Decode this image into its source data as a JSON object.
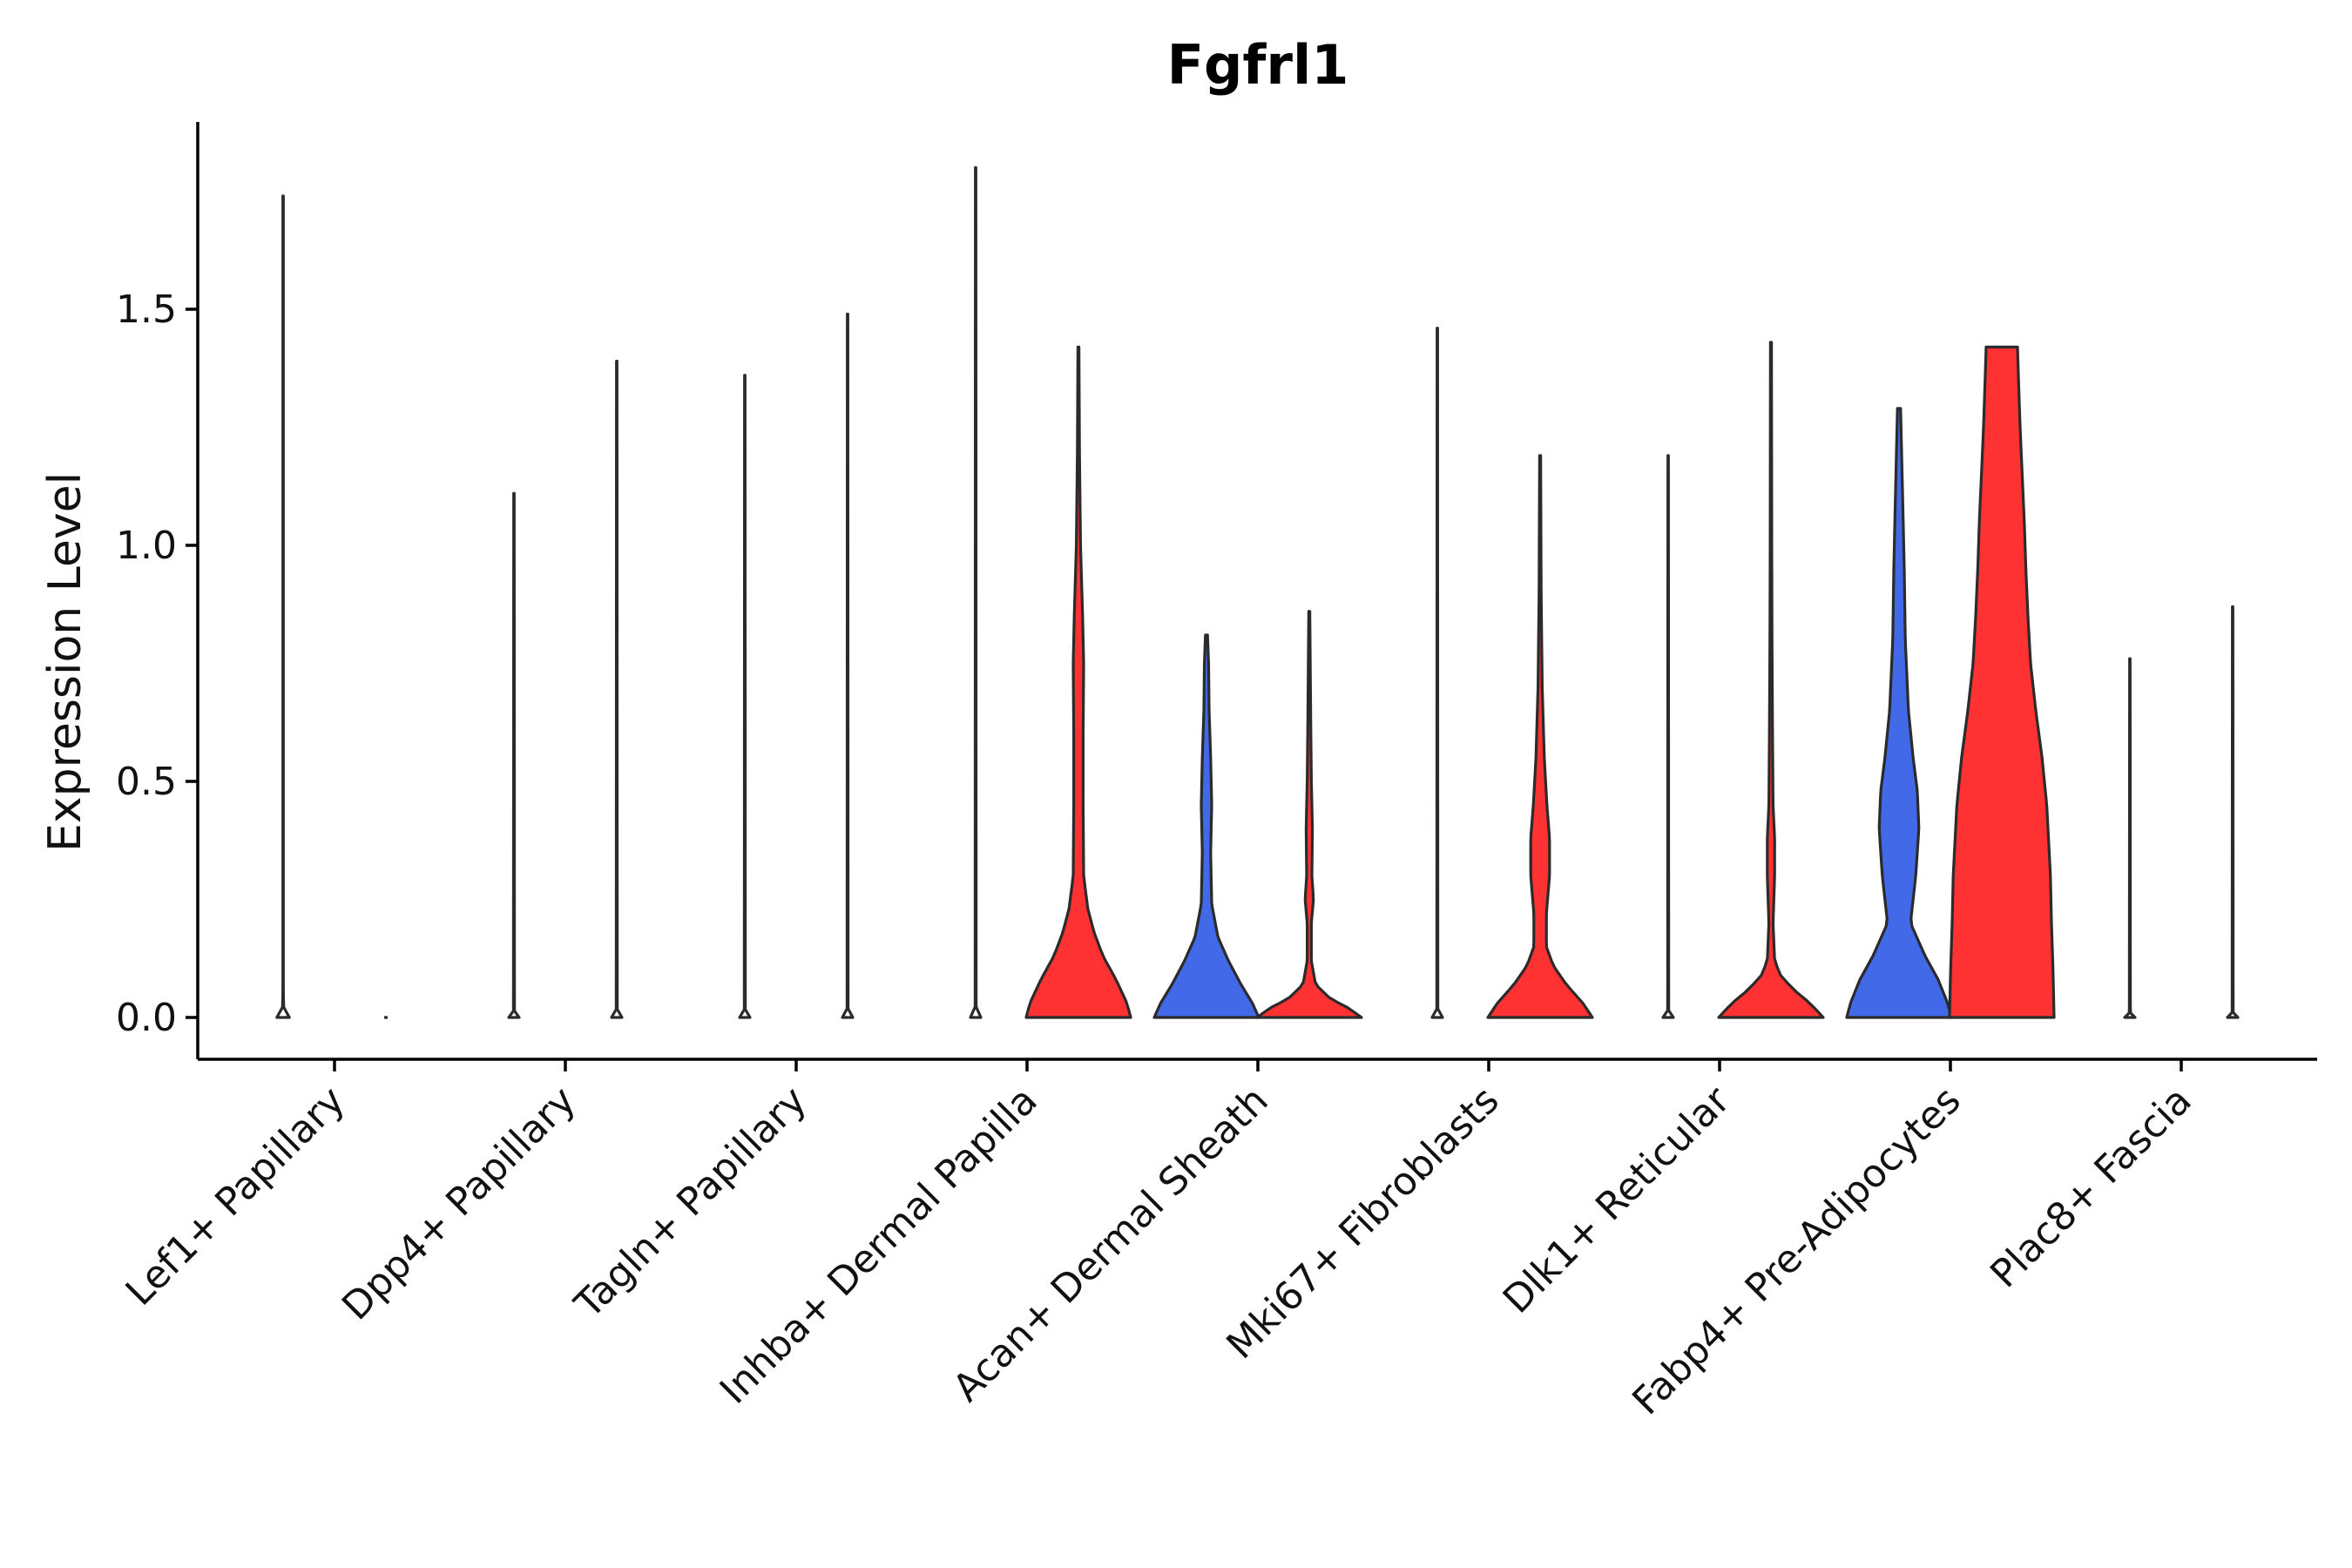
{
  "chart_data": {
    "type": "violin",
    "title": "Fgfrl1",
    "xlabel": "",
    "ylabel": "Expression Level",
    "ylim": [
      -0.09,
      1.9
    ],
    "yticks": [
      0.0,
      0.5,
      1.0,
      1.5
    ],
    "ytick_labels": [
      "0.0",
      "0.5",
      "1.0",
      "1.5"
    ],
    "categories": [
      "Lef1+ Papillary",
      "Dpp4+ Papillary",
      "Tagln+ Papillary",
      "Inhba+ Dermal Papilla",
      "Acan+ Dermal Sheath",
      "Mki67+ Fibroblasts",
      "Dlk1+ Reticular",
      "Fabp4+ Pre-Adipocytes",
      "Plac8+ Fascia"
    ],
    "groups": [
      "group1",
      "group2"
    ],
    "group_colors": {
      "group1": "#4169e8",
      "group2": "#fe3232"
    },
    "violins": [
      {
        "category": 0,
        "group": "group1",
        "fill": "none",
        "max": 1.74,
        "profile": [
          [
            0,
            0.12
          ],
          [
            0.01,
            0.015
          ],
          [
            0.05,
            0.005
          ],
          [
            1.74,
            0.005
          ]
        ]
      },
      {
        "category": 0,
        "group": "group2",
        "fill": "none",
        "max": 0.0,
        "profile": [
          [
            0,
            0.03
          ]
        ]
      },
      {
        "category": 1,
        "group": "group1",
        "fill": "none",
        "max": 1.11,
        "profile": [
          [
            0,
            0.1
          ],
          [
            0.01,
            0.01
          ],
          [
            1.11,
            0.005
          ]
        ]
      },
      {
        "category": 1,
        "group": "group2",
        "fill": "none",
        "max": 1.39,
        "profile": [
          [
            0,
            0.1
          ],
          [
            0.01,
            0.01
          ],
          [
            1.39,
            0.005
          ]
        ]
      },
      {
        "category": 2,
        "group": "group1",
        "fill": "none",
        "max": 1.36,
        "profile": [
          [
            0,
            0.1
          ],
          [
            0.01,
            0.01
          ],
          [
            1.36,
            0.005
          ]
        ]
      },
      {
        "category": 2,
        "group": "group2",
        "fill": "none",
        "max": 1.49,
        "profile": [
          [
            0,
            0.1
          ],
          [
            0.01,
            0.01
          ],
          [
            1.49,
            0.005
          ]
        ]
      },
      {
        "category": 3,
        "group": "group1",
        "fill": "none",
        "max": 1.8,
        "profile": [
          [
            0,
            0.1
          ],
          [
            0.01,
            0.01
          ],
          [
            1.8,
            0.005
          ]
        ]
      },
      {
        "category": 3,
        "group": "group2",
        "fill": "group2",
        "max": 1.42,
        "profile": [
          [
            0,
            1.0
          ],
          [
            0.03,
            0.93
          ],
          [
            0.08,
            0.72
          ],
          [
            0.13,
            0.47
          ],
          [
            0.18,
            0.3
          ],
          [
            0.23,
            0.18
          ],
          [
            0.3,
            0.1
          ],
          [
            0.45,
            0.09
          ],
          [
            0.6,
            0.09
          ],
          [
            0.75,
            0.1
          ],
          [
            0.85,
            0.08
          ],
          [
            1.0,
            0.04
          ],
          [
            1.2,
            0.02
          ],
          [
            1.42,
            0.01
          ]
        ]
      },
      {
        "category": 4,
        "group": "group1",
        "fill": "group1",
        "max": 0.81,
        "profile": [
          [
            0,
            1.0
          ],
          [
            0.03,
            0.88
          ],
          [
            0.07,
            0.66
          ],
          [
            0.12,
            0.42
          ],
          [
            0.17,
            0.22
          ],
          [
            0.24,
            0.1
          ],
          [
            0.35,
            0.08
          ],
          [
            0.45,
            0.1
          ],
          [
            0.55,
            0.08
          ],
          [
            0.65,
            0.05
          ],
          [
            0.75,
            0.04
          ],
          [
            0.81,
            0.02
          ]
        ]
      },
      {
        "category": 4,
        "group": "group2",
        "fill": "group2",
        "max": 0.86,
        "profile": [
          [
            0,
            1.0
          ],
          [
            0.02,
            0.75
          ],
          [
            0.04,
            0.4
          ],
          [
            0.07,
            0.12
          ],
          [
            0.12,
            0.04
          ],
          [
            0.2,
            0.04
          ],
          [
            0.25,
            0.08
          ],
          [
            0.3,
            0.05
          ],
          [
            0.4,
            0.06
          ],
          [
            0.5,
            0.04
          ],
          [
            0.6,
            0.03
          ],
          [
            0.86,
            0.01
          ]
        ]
      },
      {
        "category": 5,
        "group": "group1",
        "fill": "none",
        "max": 1.46,
        "profile": [
          [
            0,
            0.1
          ],
          [
            0.01,
            0.01
          ],
          [
            1.46,
            0.005
          ]
        ]
      },
      {
        "category": 5,
        "group": "group2",
        "fill": "group2",
        "max": 1.19,
        "profile": [
          [
            0,
            1.0
          ],
          [
            0.03,
            0.82
          ],
          [
            0.07,
            0.5
          ],
          [
            0.11,
            0.25
          ],
          [
            0.15,
            0.12
          ],
          [
            0.22,
            0.12
          ],
          [
            0.3,
            0.18
          ],
          [
            0.38,
            0.18
          ],
          [
            0.45,
            0.13
          ],
          [
            0.55,
            0.08
          ],
          [
            0.7,
            0.04
          ],
          [
            0.9,
            0.02
          ],
          [
            1.19,
            0.01
          ]
        ]
      },
      {
        "category": 6,
        "group": "group1",
        "fill": "none",
        "max": 1.19,
        "profile": [
          [
            0,
            0.1
          ],
          [
            0.01,
            0.01
          ],
          [
            1.19,
            0.005
          ]
        ]
      },
      {
        "category": 6,
        "group": "group2",
        "fill": "group2",
        "max": 1.43,
        "profile": [
          [
            0,
            1.0
          ],
          [
            0.03,
            0.75
          ],
          [
            0.06,
            0.42
          ],
          [
            0.09,
            0.18
          ],
          [
            0.12,
            0.07
          ],
          [
            0.2,
            0.04
          ],
          [
            0.3,
            0.07
          ],
          [
            0.38,
            0.07
          ],
          [
            0.45,
            0.04
          ],
          [
            0.6,
            0.03
          ],
          [
            0.8,
            0.02
          ],
          [
            1.0,
            0.015
          ],
          [
            1.43,
            0.01
          ]
        ]
      },
      {
        "category": 7,
        "group": "group1",
        "fill": "group1",
        "max": 1.29,
        "profile": [
          [
            0,
            1.0
          ],
          [
            0.03,
            0.93
          ],
          [
            0.08,
            0.75
          ],
          [
            0.13,
            0.5
          ],
          [
            0.2,
            0.22
          ],
          [
            0.3,
            0.32
          ],
          [
            0.4,
            0.38
          ],
          [
            0.48,
            0.35
          ],
          [
            0.55,
            0.27
          ],
          [
            0.65,
            0.18
          ],
          [
            0.8,
            0.12
          ],
          [
            0.95,
            0.1
          ],
          [
            1.1,
            0.07
          ],
          [
            1.29,
            0.03
          ]
        ]
      },
      {
        "category": 7,
        "group": "group2",
        "fill": "group2",
        "max": 1.42,
        "profile": [
          [
            0,
            1.0
          ],
          [
            0.1,
            0.98
          ],
          [
            0.2,
            0.95
          ],
          [
            0.3,
            0.93
          ],
          [
            0.45,
            0.86
          ],
          [
            0.55,
            0.77
          ],
          [
            0.65,
            0.65
          ],
          [
            0.75,
            0.55
          ],
          [
            0.85,
            0.5
          ],
          [
            0.95,
            0.46
          ],
          [
            1.05,
            0.43
          ],
          [
            1.15,
            0.39
          ],
          [
            1.25,
            0.35
          ],
          [
            1.35,
            0.32
          ],
          [
            1.42,
            0.3
          ]
        ]
      },
      {
        "category": 8,
        "group": "group1",
        "fill": "none",
        "max": 0.76,
        "profile": [
          [
            0,
            0.1
          ],
          [
            0.01,
            0.01
          ],
          [
            0.76,
            0.005
          ]
        ]
      },
      {
        "category": 8,
        "group": "group2",
        "fill": "none",
        "max": 0.87,
        "profile": [
          [
            0,
            0.1
          ],
          [
            0.01,
            0.01
          ],
          [
            0.87,
            0.005
          ]
        ]
      }
    ],
    "grid": false,
    "legend": "none"
  }
}
